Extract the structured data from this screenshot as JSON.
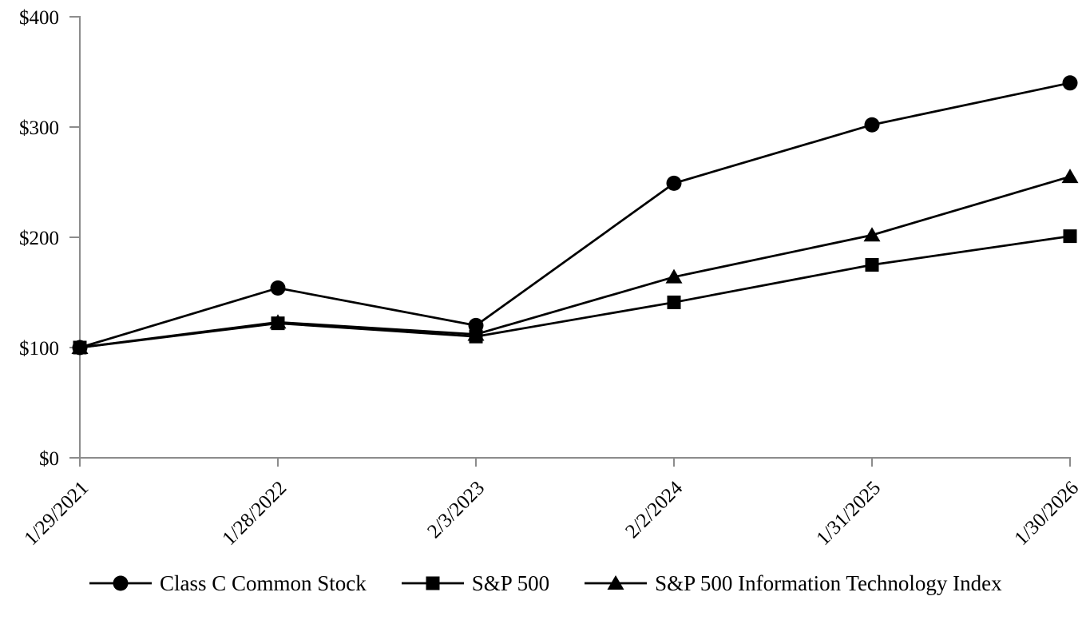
{
  "chart_data": {
    "type": "line",
    "title": "",
    "xlabel": "",
    "ylabel": "",
    "x": [
      "1/29/2021",
      "1/28/2022",
      "2/3/2023",
      "2/2/2024",
      "1/31/2025",
      "1/30/2026"
    ],
    "series": [
      {
        "name": "Class C Common Stock",
        "marker": "circle",
        "values": [
          100,
          154,
          120,
          249,
          302,
          340
        ]
      },
      {
        "name": "S&P 500",
        "marker": "square",
        "values": [
          100,
          122,
          110,
          141,
          175,
          201
        ]
      },
      {
        "name": "S&P 500 Information Technology Index",
        "marker": "triangle",
        "values": [
          100,
          123,
          112,
          164,
          202,
          255
        ]
      }
    ],
    "yticks": [
      {
        "label": "$0",
        "value": 0
      },
      {
        "label": "$100",
        "value": 100
      },
      {
        "label": "$200",
        "value": 200
      },
      {
        "label": "$300",
        "value": 300
      },
      {
        "label": "$400",
        "value": 400
      }
    ],
    "ylim": [
      0,
      400
    ],
    "grid": false,
    "legend_position": "bottom",
    "colors": {
      "series": "#000000",
      "axis": "#8c8c8c",
      "text": "#000000",
      "background": "#ffffff"
    }
  }
}
